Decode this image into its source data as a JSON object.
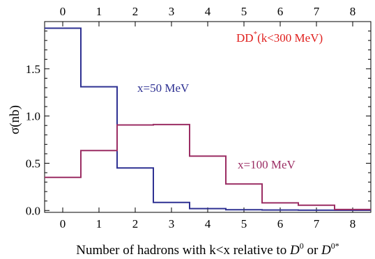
{
  "chart_data": {
    "type": "step",
    "annotation_title": "DD*(k<300 MeV)",
    "annotation_title_base": "DD",
    "annotation_title_sup": "*",
    "annotation_title_rest": "(k<300  MeV)",
    "ylabel": "σ(nb)",
    "xlabel_prefix": "Number  of hadrons  with  k<x relative  to ",
    "xlabel_d1": "D",
    "xlabel_d1_sup": "0",
    "xlabel_or": " or ",
    "xlabel_d2": "D",
    "xlabel_d2_sup": "0*",
    "x": [
      0,
      1,
      2,
      3,
      4,
      5,
      6,
      7,
      8
    ],
    "xticks": [
      "0",
      "1",
      "2",
      "3",
      "4",
      "5",
      "6",
      "7",
      "8"
    ],
    "yticks": [
      "0.0",
      "0.5",
      "1.0",
      "1.5"
    ],
    "ytick_values": [
      0.0,
      0.5,
      1.0,
      1.5
    ],
    "xlim": [
      -0.5,
      8.5
    ],
    "ylim": [
      -0.02,
      2.0
    ],
    "series": [
      {
        "name": "x=50 MeV",
        "color": "#2e3192",
        "values": [
          1.93,
          1.31,
          0.45,
          0.085,
          0.02,
          0.008,
          0.005,
          0.003,
          0.002
        ]
      },
      {
        "name": "x=100 MeV",
        "color": "#9b2d63",
        "values": [
          0.35,
          0.635,
          0.905,
          0.91,
          0.575,
          0.28,
          0.08,
          0.055,
          0.01
        ]
      }
    ],
    "colors": {
      "title": "#e0201e",
      "series1": "#2e3192",
      "series2": "#9b2d63"
    },
    "grid": false,
    "legend": "annotations on plot"
  }
}
